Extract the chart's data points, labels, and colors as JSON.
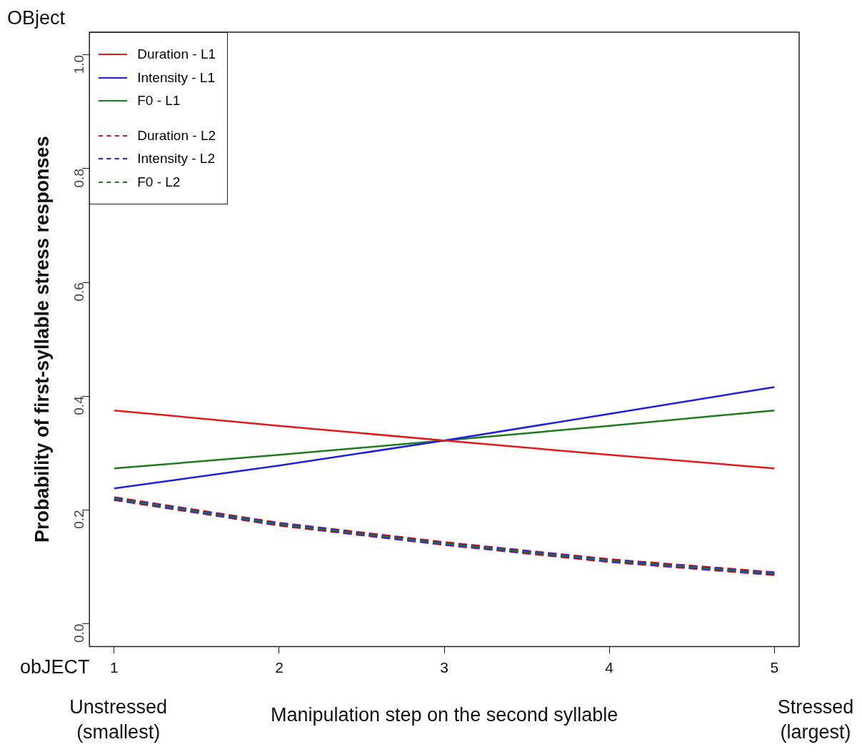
{
  "chart_data": {
    "type": "line",
    "xlabel": "Manipulation step on the second syllable",
    "ylabel": "Probability of first-syllable stress responses",
    "x": [
      1,
      2,
      3,
      4,
      5
    ],
    "xlim": [
      0.85,
      5.15
    ],
    "xticks": [
      1,
      2,
      3,
      4,
      5
    ],
    "ylim": [
      -0.04,
      1.04
    ],
    "yticks": [
      {
        "value": 0,
        "label": "0.0"
      },
      {
        "value": 0.2,
        "label": "0.2"
      },
      {
        "value": 0.4,
        "label": "0.4"
      },
      {
        "value": 0.6,
        "label": "0.6"
      },
      {
        "value": 0.8,
        "label": "0.8"
      },
      {
        "value": 1,
        "label": "1.0"
      }
    ],
    "grid": false,
    "legend": "top left",
    "marker": "none",
    "annotations": [
      "OBject",
      "obJECT",
      "Unstressed\n(smallest)",
      "Stressed\n(largest)"
    ],
    "series": [
      {
        "name": "Duration - L1",
        "color": "#e31a1c",
        "line_style": "solid",
        "values": [
          0.375,
          0.348,
          0.322,
          0.297,
          0.273
        ]
      },
      {
        "name": "Intensity - L1",
        "color": "#1f1fe0",
        "line_style": "solid",
        "values": [
          0.238,
          0.278,
          0.322,
          0.369,
          0.416
        ]
      },
      {
        "name": "F0 - L1",
        "color": "#1e7b1e",
        "line_style": "solid",
        "values": [
          0.273,
          0.297,
          0.322,
          0.348,
          0.375
        ]
      },
      {
        "name": "Duration - L2",
        "color": "#e31a1c",
        "line_style": "dashed",
        "values": [
          0.22,
          0.175,
          0.141,
          0.111,
          0.088
        ]
      },
      {
        "name": "Intensity - L2",
        "color": "#1f1fe0",
        "line_style": "dashed",
        "values": [
          0.22,
          0.175,
          0.141,
          0.111,
          0.088
        ]
      },
      {
        "name": "F0 - L2",
        "color": "#1e7b1e",
        "line_style": "dashed",
        "values": [
          0.22,
          0.175,
          0.141,
          0.111,
          0.088
        ]
      }
    ]
  }
}
